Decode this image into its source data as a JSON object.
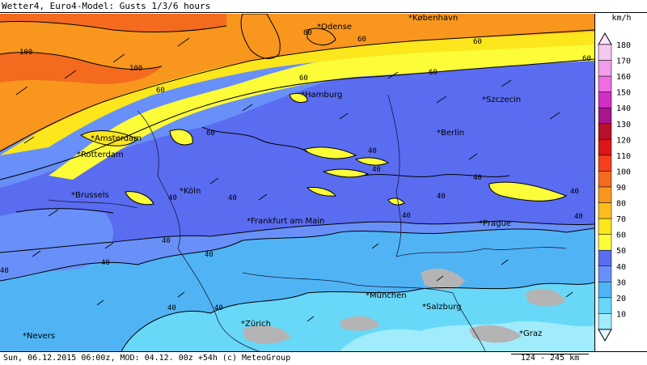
{
  "header": {
    "title": "Wetter4, Euro4-Model: Gusts 1/3/6 hours"
  },
  "footer": {
    "info": "Sun, 06.12.2015 06:00z, MOD: 04.12. 00z +54h (c) MeteoGroup",
    "scale": "124 - 245 km"
  },
  "legend": {
    "unit": "km/h",
    "levels": [
      {
        "label": "180",
        "color": "#f4c8f0"
      },
      {
        "label": "170",
        "color": "#f09ee8"
      },
      {
        "label": "160",
        "color": "#ee6ee0"
      },
      {
        "label": "150",
        "color": "#d12ec4"
      },
      {
        "label": "140",
        "color": "#a8168c"
      },
      {
        "label": "130",
        "color": "#b8102a"
      },
      {
        "label": "120",
        "color": "#dc1618"
      },
      {
        "label": "110",
        "color": "#f4401c"
      },
      {
        "label": "100",
        "color": "#f46a1e"
      },
      {
        "label": "90",
        "color": "#f8961e"
      },
      {
        "label": "80",
        "color": "#fcbe1c"
      },
      {
        "label": "70",
        "color": "#fce61c"
      },
      {
        "label": "60",
        "color": "#fcfc38"
      },
      {
        "label": "50",
        "color": "#5a6cf0"
      },
      {
        "label": "40",
        "color": "#6890f8"
      },
      {
        "label": "30",
        "color": "#50b4f4"
      },
      {
        "label": "20",
        "color": "#68d8f8"
      },
      {
        "label": "10",
        "color": "#a0ecfc"
      }
    ]
  },
  "cities": {
    "odense": "Odense",
    "kobenhavn": "København",
    "hamburg": "Hamburg",
    "szczecin": "Szczecin",
    "amsterdam": "Amsterdam",
    "berlin": "Berlin",
    "rotterdam": "Rotterdam",
    "brussels": "Brussels",
    "koln": "Köln",
    "frankfurt": "Frankfurt am Main",
    "prague": "Prague",
    "munchen": "München",
    "salzburg": "Salzburg",
    "zurich": "Zürich",
    "nevers": "Nevers",
    "graz": "Graz"
  },
  "contour_labels": {
    "c100a": "100",
    "c100b": "100",
    "c60a": "60",
    "c60b": "60",
    "c60c": "60",
    "c60d": "60",
    "c60e": "60",
    "c60f": "60",
    "c60g": "60",
    "c60h": "60",
    "c40a": "40",
    "c40b": "40",
    "c40c": "40",
    "c40d": "40",
    "c40e": "40",
    "c40f": "40",
    "c40g": "40",
    "c40h": "40",
    "c40i": "40",
    "c40j": "40",
    "c40k": "40",
    "c40l": "40",
    "c40m": "40",
    "c40n": "40",
    "c40o": "40"
  },
  "colors": {
    "orange_zone": "#f8961e",
    "orange_dark": "#f46a1e",
    "yellow_zone": "#fcfc38",
    "yellow_dark": "#fce61c",
    "blue50": "#5a6cf0",
    "blue40": "#6890f8",
    "blue30": "#50b4f4",
    "blue20": "#68d8f8",
    "blue10": "#a0ecfc",
    "gray_terrain": "#b4b4b4"
  }
}
